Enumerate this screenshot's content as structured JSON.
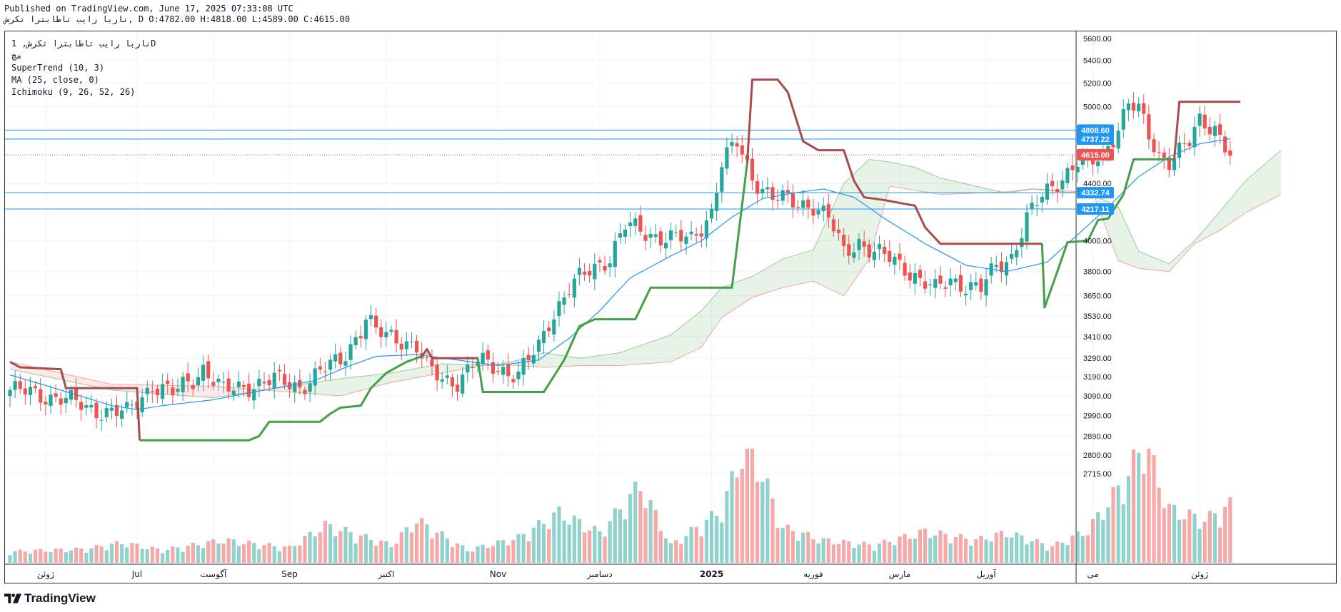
{
  "header": {
    "published": "Published on TradingView.com, June 17, 2025 07:33:08 UTC",
    "ohlc_line": "ناربا رایب تاطابترا تکرش, D O:4782.00 H:4818.00 L:4589.00 C:4615.00"
  },
  "legend": {
    "symbol": "ناربا رایب تاطابترا تکرش, 1D",
    "market": "مچ",
    "indicators": [
      "SuperTrend (10, 3)",
      "MA (25, close, 0)",
      "Ichimoku (9, 26, 52, 26)"
    ]
  },
  "branding": {
    "name": "TradingView",
    "logo_icon": "tradingview-logo-icon"
  },
  "colors": {
    "up": "#26a69a",
    "down": "#ef5350",
    "ma": "#2196f3",
    "st_up": "#43a047",
    "st_down": "#a84b4b",
    "hline": "#2196f3",
    "last": "#ef5350"
  },
  "chart_data": {
    "type": "candlestick",
    "scale": "log",
    "y_ticks": [
      5600,
      5400,
      5200,
      5000,
      4400,
      4000,
      3800,
      3650,
      3530,
      3410,
      3290,
      3190,
      3090,
      2990,
      2890,
      2800,
      2715
    ],
    "x_labels": [
      {
        "label": "ژوئن",
        "i": 7
      },
      {
        "label": "Jul",
        "i": 25
      },
      {
        "label": "آگوست",
        "i": 40
      },
      {
        "label": "Sep",
        "i": 55
      },
      {
        "label": "اکتبر",
        "i": 74
      },
      {
        "label": "Nov",
        "i": 96
      },
      {
        "label": "دسامبر",
        "i": 116
      },
      {
        "label": "2025",
        "i": 138
      },
      {
        "label": "فوریه",
        "i": 158
      },
      {
        "label": "مارس",
        "i": 175
      },
      {
        "label": "آوریل",
        "i": 192
      },
      {
        "label": "می",
        "i": 213
      },
      {
        "label": "ژوئن",
        "i": 234
      }
    ],
    "horizontal_lines": [
      4808.6,
      4737.22,
      4332.74,
      4217.11
    ],
    "price_labels": [
      {
        "value": 4808.6,
        "text": "4808.60",
        "kind": "hline"
      },
      {
        "value": 4737.22,
        "text": "4737.22",
        "kind": "hline"
      },
      {
        "value": 4615,
        "text": "4615.00",
        "kind": "last"
      },
      {
        "value": 4332.74,
        "text": "4332.74",
        "kind": "hline"
      },
      {
        "value": 4217.11,
        "text": "4217.11",
        "kind": "hline"
      }
    ],
    "last_price": 4615,
    "close_keyframes": [
      [
        0,
        3120
      ],
      [
        5,
        3100
      ],
      [
        10,
        3080
      ],
      [
        15,
        3030
      ],
      [
        20,
        3010
      ],
      [
        23,
        3000
      ],
      [
        25,
        3060
      ],
      [
        28,
        3150
      ],
      [
        32,
        3100
      ],
      [
        36,
        3180
      ],
      [
        38,
        3240
      ],
      [
        42,
        3110
      ],
      [
        46,
        3140
      ],
      [
        52,
        3170
      ],
      [
        57,
        3140
      ],
      [
        62,
        3230
      ],
      [
        65,
        3280
      ],
      [
        69,
        3450
      ],
      [
        70,
        3520
      ],
      [
        72,
        3430
      ],
      [
        77,
        3400
      ],
      [
        80,
        3350
      ],
      [
        82,
        3230
      ],
      [
        85,
        3180
      ],
      [
        88,
        3170
      ],
      [
        92,
        3270
      ],
      [
        96,
        3240
      ],
      [
        100,
        3200
      ],
      [
        104,
        3350
      ],
      [
        106,
        3500
      ],
      [
        110,
        3700
      ],
      [
        114,
        3800
      ],
      [
        118,
        3900
      ],
      [
        121,
        4100
      ],
      [
        125,
        4050
      ],
      [
        130,
        4020
      ],
      [
        134,
        4000
      ],
      [
        138,
        4200
      ],
      [
        140,
        4550
      ],
      [
        143,
        4700
      ],
      [
        146,
        4450
      ],
      [
        150,
        4300
      ],
      [
        154,
        4260
      ],
      [
        158,
        4250
      ],
      [
        161,
        4150
      ],
      [
        164,
        3920
      ],
      [
        167,
        4000
      ],
      [
        170,
        3920
      ],
      [
        173,
        3880
      ],
      [
        176,
        3830
      ],
      [
        179,
        3750
      ],
      [
        182,
        3680
      ],
      [
        185,
        3750
      ],
      [
        188,
        3720
      ],
      [
        191,
        3690
      ],
      [
        194,
        3830
      ],
      [
        197,
        3900
      ],
      [
        200,
        4150
      ],
      [
        203,
        4300
      ],
      [
        206,
        4420
      ],
      [
        210,
        4560
      ],
      [
        212,
        4520
      ],
      [
        215,
        4620
      ],
      [
        218,
        4840
      ],
      [
        220,
        5020
      ],
      [
        222,
        4960
      ],
      [
        224,
        4760
      ],
      [
        226,
        4620
      ],
      [
        228,
        4580
      ],
      [
        230,
        4640
      ],
      [
        232,
        4700
      ],
      [
        234,
        4880
      ],
      [
        237,
        4840
      ],
      [
        240,
        4615
      ]
    ],
    "ma_keyframes": [
      [
        0,
        3200
      ],
      [
        10,
        3120
      ],
      [
        20,
        3040
      ],
      [
        25,
        3020
      ],
      [
        30,
        3040
      ],
      [
        40,
        3070
      ],
      [
        50,
        3120
      ],
      [
        60,
        3170
      ],
      [
        66,
        3240
      ],
      [
        72,
        3300
      ],
      [
        80,
        3310
      ],
      [
        88,
        3280
      ],
      [
        96,
        3250
      ],
      [
        104,
        3280
      ],
      [
        110,
        3400
      ],
      [
        116,
        3560
      ],
      [
        122,
        3760
      ],
      [
        130,
        3900
      ],
      [
        136,
        4000
      ],
      [
        142,
        4160
      ],
      [
        148,
        4290
      ],
      [
        154,
        4330
      ],
      [
        160,
        4360
      ],
      [
        166,
        4300
      ],
      [
        172,
        4150
      ],
      [
        180,
        3980
      ],
      [
        188,
        3840
      ],
      [
        196,
        3800
      ],
      [
        204,
        3860
      ],
      [
        210,
        4040
      ],
      [
        216,
        4230
      ],
      [
        222,
        4450
      ],
      [
        228,
        4600
      ],
      [
        234,
        4700
      ],
      [
        240,
        4740
      ]
    ],
    "supertrend": [
      {
        "trend": "down",
        "points": [
          [
            0,
            3270
          ],
          [
            2,
            3240
          ],
          [
            10,
            3230
          ],
          [
            11,
            3130
          ],
          [
            25,
            3130
          ],
          [
            25.5,
            2870
          ]
        ]
      },
      {
        "trend": "up",
        "points": [
          [
            25.5,
            2870
          ],
          [
            47,
            2870
          ],
          [
            49,
            2890
          ],
          [
            51,
            2960
          ],
          [
            61,
            2960
          ],
          [
            63,
            3000
          ],
          [
            65,
            3030
          ],
          [
            69,
            3040
          ],
          [
            71,
            3130
          ],
          [
            74,
            3210
          ],
          [
            78,
            3270
          ],
          [
            81,
            3300
          ]
        ]
      },
      {
        "trend": "down",
        "points": [
          [
            81,
            3300
          ],
          [
            82,
            3340
          ],
          [
            83,
            3290
          ],
          [
            92,
            3290
          ]
        ]
      },
      {
        "trend": "up",
        "points": [
          [
            92,
            3290
          ],
          [
            93,
            3110
          ],
          [
            105,
            3110
          ],
          [
            109,
            3280
          ],
          [
            112,
            3470
          ],
          [
            115,
            3510
          ],
          [
            123,
            3510
          ],
          [
            126,
            3700
          ],
          [
            142,
            3700
          ],
          [
            145,
            4550
          ]
        ]
      },
      {
        "trend": "down",
        "points": [
          [
            145,
            4550
          ],
          [
            146,
            5230
          ],
          [
            151,
            5230
          ],
          [
            153,
            5120
          ],
          [
            156,
            4720
          ],
          [
            159,
            4650
          ],
          [
            164,
            4650
          ],
          [
            166,
            4420
          ],
          [
            168,
            4300
          ],
          [
            172,
            4280
          ],
          [
            178,
            4240
          ],
          [
            180,
            4090
          ],
          [
            183,
            3980
          ],
          [
            203,
            3980
          ]
        ]
      },
      {
        "trend": "up",
        "points": [
          [
            203,
            3980
          ],
          [
            203.5,
            3580
          ],
          [
            206,
            3800
          ],
          [
            208,
            3990
          ],
          [
            212,
            4000
          ],
          [
            214,
            4140
          ],
          [
            216,
            4150
          ],
          [
            219,
            4320
          ],
          [
            221,
            4580
          ],
          [
            229,
            4580
          ]
        ]
      },
      {
        "trend": "down",
        "points": [
          [
            229,
            4580
          ],
          [
            230,
            5040
          ],
          [
            242,
            5040
          ]
        ]
      }
    ],
    "cloud_a": [
      [
        0,
        3230
      ],
      [
        20,
        3120
      ],
      [
        40,
        3080
      ],
      [
        55,
        3140
      ],
      [
        65,
        3180
      ],
      [
        75,
        3210
      ],
      [
        85,
        3260
      ],
      [
        95,
        3250
      ],
      [
        100,
        3280
      ],
      [
        105,
        3320
      ],
      [
        112,
        3290
      ],
      [
        120,
        3320
      ],
      [
        130,
        3420
      ],
      [
        136,
        3560
      ],
      [
        140,
        3700
      ],
      [
        146,
        3770
      ],
      [
        152,
        3880
      ],
      [
        158,
        3940
      ],
      [
        164,
        4400
      ],
      [
        169,
        4580
      ],
      [
        173,
        4560
      ],
      [
        178,
        4520
      ],
      [
        183,
        4440
      ],
      [
        190,
        4380
      ],
      [
        196,
        4330
      ],
      [
        201,
        4360
      ],
      [
        207,
        4340
      ],
      [
        213,
        4320
      ],
      [
        218,
        4230
      ],
      [
        222,
        3930
      ],
      [
        228,
        3850
      ],
      [
        233,
        4000
      ],
      [
        238,
        4200
      ],
      [
        243,
        4420
      ],
      [
        250,
        4650
      ]
    ],
    "cloud_b": [
      [
        0,
        3270
      ],
      [
        20,
        3150
      ],
      [
        40,
        3140
      ],
      [
        55,
        3110
      ],
      [
        65,
        3090
      ],
      [
        75,
        3160
      ],
      [
        85,
        3210
      ],
      [
        95,
        3260
      ],
      [
        100,
        3250
      ],
      [
        105,
        3240
      ],
      [
        112,
        3250
      ],
      [
        120,
        3250
      ],
      [
        130,
        3270
      ],
      [
        136,
        3350
      ],
      [
        140,
        3520
      ],
      [
        146,
        3640
      ],
      [
        152,
        3700
      ],
      [
        158,
        3740
      ],
      [
        164,
        3650
      ],
      [
        169,
        3880
      ],
      [
        173,
        4380
      ],
      [
        178,
        4350
      ],
      [
        183,
        4320
      ],
      [
        190,
        4330
      ],
      [
        196,
        4340
      ],
      [
        201,
        4360
      ],
      [
        207,
        4350
      ],
      [
        213,
        4330
      ],
      [
        218,
        3870
      ],
      [
        222,
        3820
      ],
      [
        228,
        3800
      ],
      [
        233,
        3980
      ],
      [
        238,
        4070
      ],
      [
        243,
        4190
      ],
      [
        250,
        4320
      ]
    ],
    "volume_keyframes": [
      [
        0,
        9
      ],
      [
        15,
        11
      ],
      [
        22,
        16
      ],
      [
        30,
        10
      ],
      [
        42,
        18
      ],
      [
        55,
        12
      ],
      [
        62,
        30
      ],
      [
        75,
        14
      ],
      [
        80,
        34
      ],
      [
        90,
        10
      ],
      [
        100,
        20
      ],
      [
        108,
        40
      ],
      [
        116,
        24
      ],
      [
        124,
        62
      ],
      [
        130,
        14
      ],
      [
        140,
        42
      ],
      [
        145,
        100
      ],
      [
        148,
        70
      ],
      [
        152,
        28
      ],
      [
        160,
        18
      ],
      [
        170,
        14
      ],
      [
        180,
        25
      ],
      [
        190,
        18
      ],
      [
        196,
        24
      ],
      [
        205,
        13
      ],
      [
        212,
        26
      ],
      [
        220,
        70
      ],
      [
        223,
        98
      ],
      [
        228,
        43
      ],
      [
        235,
        34
      ],
      [
        240,
        46
      ]
    ]
  }
}
